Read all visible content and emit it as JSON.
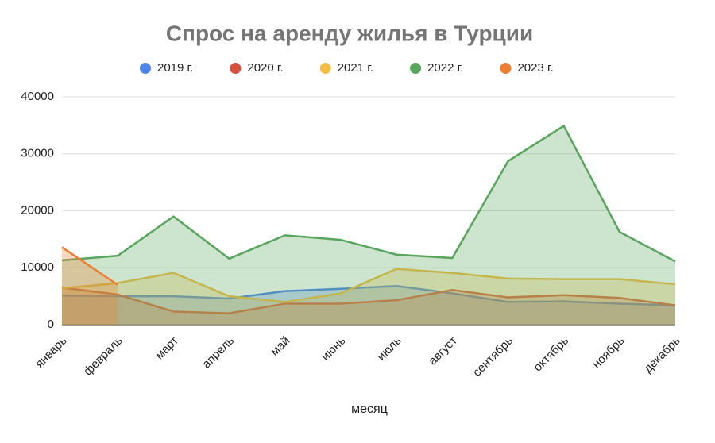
{
  "chart_data": {
    "type": "area",
    "title": "Спрос на аренду жилья в Турции",
    "x_label": "месяц",
    "categories": [
      "январь",
      "февраль",
      "март",
      "апрель",
      "май",
      "июнь",
      "июль",
      "август",
      "сентябрь",
      "октябрь",
      "ноябрь",
      "декабрь"
    ],
    "series": [
      {
        "name": "2019 г.",
        "color": "#4f86ec",
        "values": [
          5100,
          5000,
          5000,
          4600,
          5900,
          6300,
          6800,
          5500,
          4000,
          4100,
          3700,
          3400
        ]
      },
      {
        "name": "2020 г.",
        "color": "#d9503f",
        "values": [
          6500,
          5300,
          2300,
          2000,
          3700,
          3700,
          4300,
          6100,
          4800,
          5200,
          4700,
          3400
        ]
      },
      {
        "name": "2021 г.",
        "color": "#f2bd42",
        "values": [
          6400,
          7300,
          9100,
          5000,
          4000,
          5500,
          9800,
          9100,
          8100,
          8000,
          8000,
          7100
        ]
      },
      {
        "name": "2022 г.",
        "color": "#58a55c",
        "values": [
          11300,
          12100,
          19000,
          11600,
          15700,
          14900,
          12300,
          11700,
          28700,
          34900,
          16300,
          11100
        ]
      },
      {
        "name": "2023 г.",
        "color": "#ee7e30",
        "values": [
          13600,
          7000,
          null,
          null,
          null,
          null,
          null,
          null,
          null,
          null,
          null,
          null
        ]
      }
    ],
    "ylim": [
      0,
      40000
    ],
    "yticks": [
      0,
      10000,
      20000,
      30000,
      40000
    ],
    "grid": true,
    "legend": "top"
  }
}
